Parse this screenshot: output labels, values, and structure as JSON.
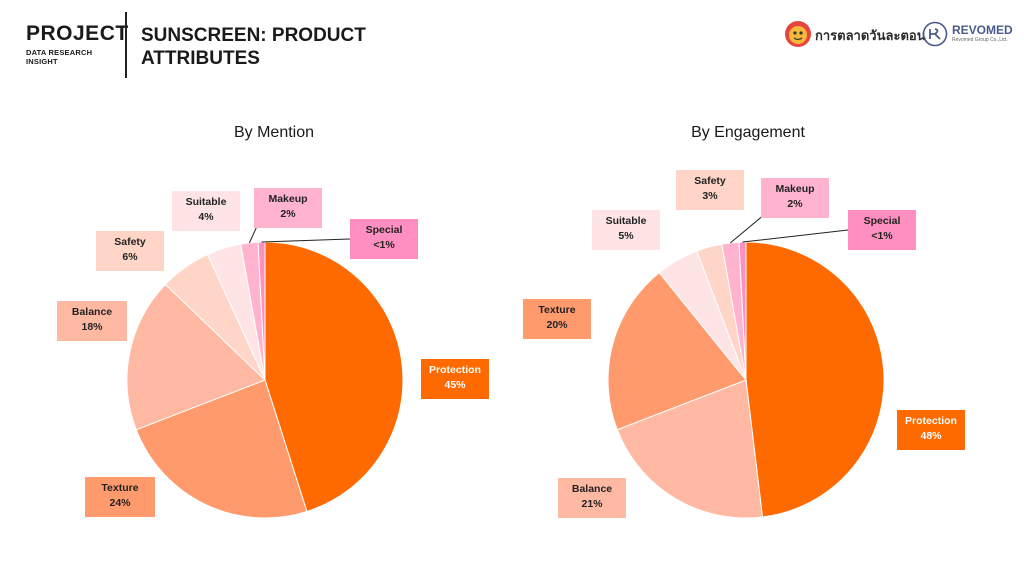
{
  "header": {
    "brand": "PROJECT",
    "subtitle": "DATA RESEARCH INSIGHT",
    "title_line1": "SUNSCREEN: PRODUCT",
    "title_line2": "ATTRIBUTES"
  },
  "logos": {
    "logo1_text": "การตลาดวันละตอน",
    "logo2_text": "REVOMED",
    "logo2_sub": "Revomed Group Co.,Ltd."
  },
  "chart_data": [
    {
      "type": "pie",
      "title": "By Mention",
      "slices": [
        {
          "label": "Protection",
          "value": 45,
          "display": "45%",
          "color": "#ff6a00"
        },
        {
          "label": "Texture",
          "value": 24,
          "display": "24%",
          "color": "#ff9a6c"
        },
        {
          "label": "Balance",
          "value": 18,
          "display": "18%",
          "color": "#ffb9a2"
        },
        {
          "label": "Safety",
          "value": 6,
          "display": "6%",
          "color": "#ffd5c8"
        },
        {
          "label": "Suitable",
          "value": 4,
          "display": "4%",
          "color": "#ffe4e6"
        },
        {
          "label": "Makeup",
          "value": 2,
          "display": "2%",
          "color": "#ffb3cf"
        },
        {
          "label": "Special",
          "value": 0.8,
          "display": "<1%",
          "color": "#ff8fc0"
        }
      ]
    },
    {
      "type": "pie",
      "title": "By Engagement",
      "slices": [
        {
          "label": "Protection",
          "value": 48,
          "display": "48%",
          "color": "#ff6a00"
        },
        {
          "label": "Balance",
          "value": 21,
          "display": "21%",
          "color": "#ffb9a2"
        },
        {
          "label": "Texture",
          "value": 20,
          "display": "20%",
          "color": "#ff9a6c"
        },
        {
          "label": "Suitable",
          "value": 5,
          "display": "5%",
          "color": "#ffe4e6"
        },
        {
          "label": "Safety",
          "value": 3,
          "display": "3%",
          "color": "#ffd5c8"
        },
        {
          "label": "Makeup",
          "value": 2,
          "display": "2%",
          "color": "#ffb3cf"
        },
        {
          "label": "Special",
          "value": 0.8,
          "display": "<1%",
          "color": "#ff8fc0"
        }
      ]
    }
  ]
}
